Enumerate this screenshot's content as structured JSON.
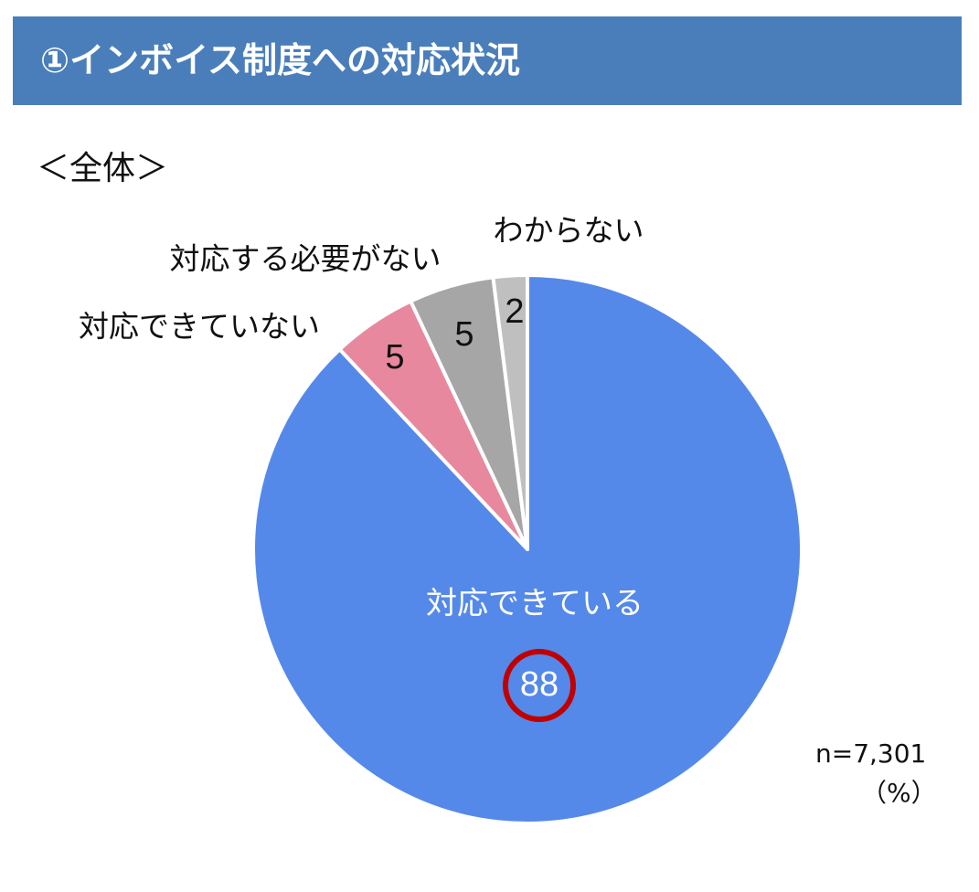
{
  "header": {
    "title": "①インボイス制度への対応状況"
  },
  "subtitle": "＜全体＞",
  "notes": {
    "n": "n=7,301",
    "unit": "（%）"
  },
  "colors": {
    "header_bg": "#4a7ebb",
    "highlight_circle": "#c00000"
  },
  "chart_data": {
    "type": "pie",
    "title": "",
    "slices": [
      {
        "label": "対応できている",
        "value": 88,
        "value_label": "88",
        "color": "#5589e9",
        "highlighted": true
      },
      {
        "label": "対応できていない",
        "value": 5,
        "value_label": "5",
        "color": "#e8889e"
      },
      {
        "label": "対応する必要がない",
        "value": 5,
        "value_label": "5",
        "color": "#a6a6a6"
      },
      {
        "label": "わからない",
        "value": 2,
        "value_label": "2",
        "color": "#bfbfbf"
      }
    ],
    "start": "12 o'clock",
    "direction": "clockwise"
  }
}
